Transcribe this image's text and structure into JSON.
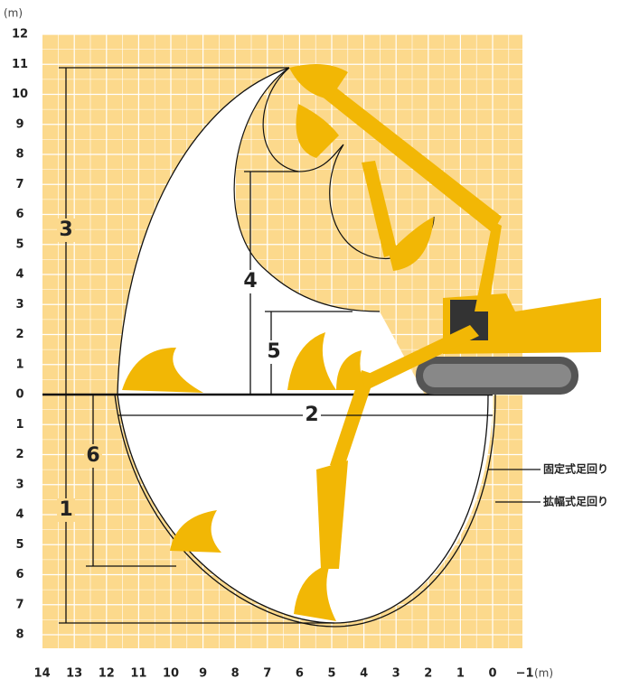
{
  "y_axis": {
    "unit": "(m)",
    "ticks_up": [
      "0",
      "1",
      "2",
      "3",
      "4",
      "5",
      "6",
      "7",
      "8",
      "9",
      "10",
      "11",
      "12"
    ],
    "ticks_down": [
      "1",
      "2",
      "3",
      "4",
      "5",
      "6",
      "7",
      "8"
    ]
  },
  "x_axis": {
    "unit": "(m)",
    "ticks": [
      "14",
      "13",
      "12",
      "11",
      "10",
      "9",
      "8",
      "7",
      "6",
      "5",
      "4",
      "3",
      "2",
      "1",
      "0",
      "−1"
    ]
  },
  "dimensions": [
    "1",
    "2",
    "3",
    "4",
    "5",
    "6"
  ],
  "legend": [
    "固定式足回り",
    "拡幅式足回り"
  ]
}
